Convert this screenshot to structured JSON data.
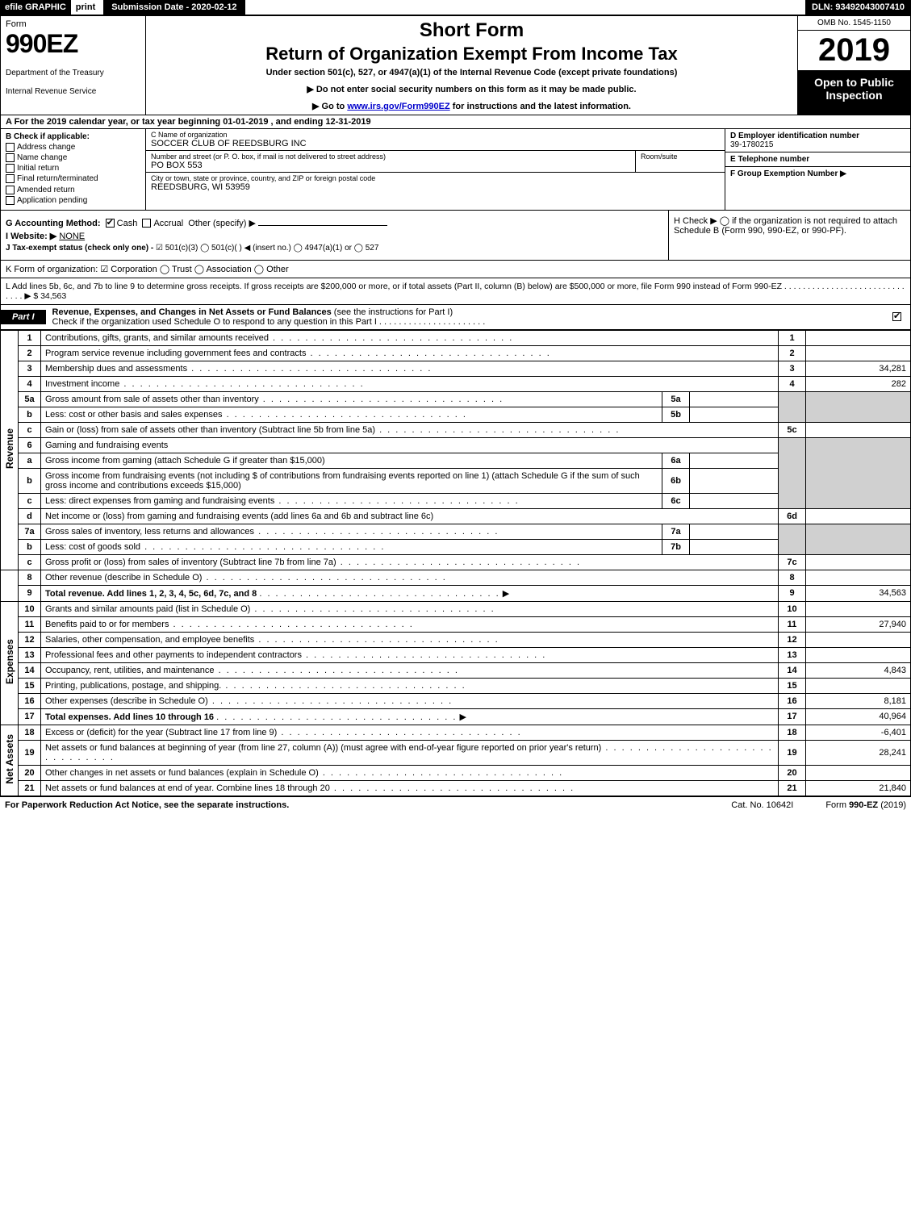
{
  "topbar": {
    "efile": "efile GRAPHIC",
    "print": "print",
    "submission": "Submission Date - 2020-02-12",
    "dln": "DLN: 93492043007410"
  },
  "header": {
    "form_word": "Form",
    "form_num": "990EZ",
    "dept1": "Department of the Treasury",
    "dept2": "Internal Revenue Service",
    "short": "Short Form",
    "title": "Return of Organization Exempt From Income Tax",
    "sub1": "Under section 501(c), 527, or 4947(a)(1) of the Internal Revenue Code (except private foundations)",
    "sub2": "▶ Do not enter social security numbers on this form as it may be made public.",
    "sub3_pre": "▶ Go to ",
    "sub3_link": "www.irs.gov/Form990EZ",
    "sub3_post": " for instructions and the latest information.",
    "omb": "OMB No. 1545-1150",
    "year": "2019",
    "open": "Open to Public Inspection"
  },
  "row_a": "A For the 2019 calendar year, or tax year beginning 01-01-2019 , and ending 12-31-2019",
  "box_b": {
    "hdr": "B Check if applicable:",
    "opts": [
      "Address change",
      "Name change",
      "Initial return",
      "Final return/terminated",
      "Amended return",
      "Application pending"
    ]
  },
  "box_c": {
    "name_lbl": "C Name of organization",
    "name": "SOCCER CLUB OF REEDSBURG INC",
    "street_lbl": "Number and street (or P. O. box, if mail is not delivered to street address)",
    "street": "PO BOX 553",
    "suite_lbl": "Room/suite",
    "city_lbl": "City or town, state or province, country, and ZIP or foreign postal code",
    "city": "REEDSBURG, WI  53959"
  },
  "box_d": {
    "ein_lbl": "D Employer identification number",
    "ein": "39-1780215",
    "tel_lbl": "E Telephone number",
    "grp_lbl": "F Group Exemption Number   ▶"
  },
  "row_g": {
    "acct_lbl": "G Accounting Method:",
    "cash": "Cash",
    "accrual": "Accrual",
    "other": "Other (specify) ▶",
    "website_lbl": "I Website: ▶",
    "website": "NONE",
    "j_lbl": "J Tax-exempt status (check only one) -",
    "j_opts": "☑ 501(c)(3)  ◯ 501(c)(  ) ◀ (insert no.)  ◯ 4947(a)(1) or  ◯ 527"
  },
  "row_h": {
    "text": "H  Check ▶  ◯  if the organization is not required to attach Schedule B (Form 990, 990-EZ, or 990-PF)."
  },
  "row_k": "K Form of organization:   ☑ Corporation   ◯ Trust   ◯ Association   ◯ Other",
  "row_l": "L Add lines 5b, 6c, and 7b to line 9 to determine gross receipts. If gross receipts are $200,000 or more, or if total assets (Part II, column (B) below) are $500,000 or more, file Form 990 instead of Form 990-EZ . . . . . . . . . . . . . . . . . . . . . . . . . . . . . .  ▶ $ 34,563",
  "part1": {
    "tab": "Part I",
    "title": "Revenue, Expenses, and Changes in Net Assets or Fund Balances",
    "paren": " (see the instructions for Part I)",
    "check_line": "Check if the organization used Schedule O to respond to any question in this Part I . . . . . . . . . . . . . . . . . . . . . ."
  },
  "side_labels": {
    "revenue": "Revenue",
    "expenses": "Expenses",
    "netassets": "Net Assets"
  },
  "lines": {
    "l1": {
      "n": "1",
      "d": "Contributions, gifts, grants, and similar amounts received",
      "amt": ""
    },
    "l2": {
      "n": "2",
      "d": "Program service revenue including government fees and contracts",
      "amt": ""
    },
    "l3": {
      "n": "3",
      "d": "Membership dues and assessments",
      "amt": "34,281"
    },
    "l4": {
      "n": "4",
      "d": "Investment income",
      "amt": "282"
    },
    "l5a": {
      "n": "5a",
      "d": "Gross amount from sale of assets other than inventory",
      "sub": "5a"
    },
    "l5b": {
      "n": "b",
      "d": "Less: cost or other basis and sales expenses",
      "sub": "5b"
    },
    "l5c": {
      "n": "c",
      "d": "Gain or (loss) from sale of assets other than inventory (Subtract line 5b from line 5a)",
      "num": "5c",
      "amt": ""
    },
    "l6": {
      "n": "6",
      "d": "Gaming and fundraising events"
    },
    "l6a": {
      "n": "a",
      "d": "Gross income from gaming (attach Schedule G if greater than $15,000)",
      "sub": "6a"
    },
    "l6b": {
      "n": "b",
      "d": "Gross income from fundraising events (not including $                    of contributions from fundraising events reported on line 1) (attach Schedule G if the sum of such gross income and contributions exceeds $15,000)",
      "sub": "6b"
    },
    "l6c": {
      "n": "c",
      "d": "Less: direct expenses from gaming and fundraising events",
      "sub": "6c"
    },
    "l6d": {
      "n": "d",
      "d": "Net income or (loss) from gaming and fundraising events (add lines 6a and 6b and subtract line 6c)",
      "num": "6d",
      "amt": ""
    },
    "l7a": {
      "n": "7a",
      "d": "Gross sales of inventory, less returns and allowances",
      "sub": "7a"
    },
    "l7b": {
      "n": "b",
      "d": "Less: cost of goods sold",
      "sub": "7b"
    },
    "l7c": {
      "n": "c",
      "d": "Gross profit or (loss) from sales of inventory (Subtract line 7b from line 7a)",
      "num": "7c",
      "amt": ""
    },
    "l8": {
      "n": "8",
      "d": "Other revenue (describe in Schedule O)",
      "amt": ""
    },
    "l9": {
      "n": "9",
      "d": "Total revenue. Add lines 1, 2, 3, 4, 5c, 6d, 7c, and 8",
      "amt": "34,563",
      "bold": true,
      "arrow": true
    },
    "l10": {
      "n": "10",
      "d": "Grants and similar amounts paid (list in Schedule O)",
      "amt": ""
    },
    "l11": {
      "n": "11",
      "d": "Benefits paid to or for members",
      "amt": "27,940"
    },
    "l12": {
      "n": "12",
      "d": "Salaries, other compensation, and employee benefits",
      "amt": ""
    },
    "l13": {
      "n": "13",
      "d": "Professional fees and other payments to independent contractors",
      "amt": ""
    },
    "l14": {
      "n": "14",
      "d": "Occupancy, rent, utilities, and maintenance",
      "amt": "4,843"
    },
    "l15": {
      "n": "15",
      "d": "Printing, publications, postage, and shipping.",
      "amt": ""
    },
    "l16": {
      "n": "16",
      "d": "Other expenses (describe in Schedule O)",
      "amt": "8,181"
    },
    "l17": {
      "n": "17",
      "d": "Total expenses. Add lines 10 through 16",
      "amt": "40,964",
      "bold": true,
      "arrow": true
    },
    "l18": {
      "n": "18",
      "d": "Excess or (deficit) for the year (Subtract line 17 from line 9)",
      "amt": "-6,401"
    },
    "l19": {
      "n": "19",
      "d": "Net assets or fund balances at beginning of year (from line 27, column (A)) (must agree with end-of-year figure reported on prior year's return)",
      "amt": "28,241"
    },
    "l20": {
      "n": "20",
      "d": "Other changes in net assets or fund balances (explain in Schedule O)",
      "amt": ""
    },
    "l21": {
      "n": "21",
      "d": "Net assets or fund balances at end of year. Combine lines 18 through 20",
      "amt": "21,840"
    }
  },
  "footer": {
    "left": "For Paperwork Reduction Act Notice, see the separate instructions.",
    "mid": "Cat. No. 10642I",
    "right": "Form 990-EZ (2019)"
  },
  "colors": {
    "black": "#000000",
    "white": "#ffffff",
    "grey": "#d0d0d0",
    "link": "#0000cc"
  }
}
